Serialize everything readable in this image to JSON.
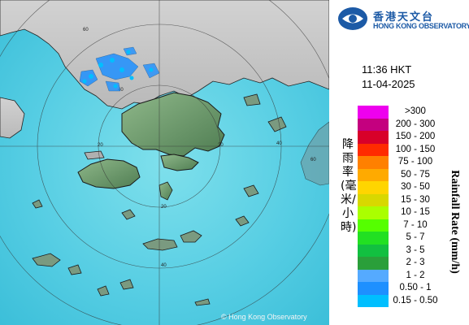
{
  "header": {
    "org_name_zh": "香港天文台",
    "org_name_en": "HONG KONG OBSERVATORY",
    "logo_icon": "hko-logo-icon"
  },
  "timestamp": {
    "time": "11:36 HKT",
    "date": "11-04-2025"
  },
  "legend": {
    "title_zh": "降雨率(毫米/小時)",
    "title_en": "Rainfall Rate (mm/h)",
    "bins": [
      {
        "label": ">300",
        "color": "#ee00ee"
      },
      {
        "label": "200 - 300",
        "color": "#c4007f"
      },
      {
        "label": "150 - 200",
        "color": "#d8002a"
      },
      {
        "label": "100 - 150",
        "color": "#ff2b00"
      },
      {
        "label": "75 - 100",
        "color": "#ff8000"
      },
      {
        "label": "50 - 75",
        "color": "#ffaa00"
      },
      {
        "label": "30 - 50",
        "color": "#ffd500"
      },
      {
        "label": "15 - 30",
        "color": "#d8d800"
      },
      {
        "label": "10 - 15",
        "color": "#aaff00"
      },
      {
        "label": "7 - 10",
        "color": "#55ff00"
      },
      {
        "label": "5 - 7",
        "color": "#22e022"
      },
      {
        "label": "3 - 5",
        "color": "#12c040"
      },
      {
        "label": "2 - 3",
        "color": "#2a9f3a"
      },
      {
        "label": "1 - 2",
        "color": "#55aaff"
      },
      {
        "label": "0.50 - 1",
        "color": "#1e90ff"
      },
      {
        "label": "0.15 - 0.50",
        "color": "#00bfff"
      }
    ]
  },
  "map": {
    "range_ring_labels": [
      "60",
      "40",
      "20",
      "20",
      "40",
      "60",
      "40",
      "20"
    ],
    "copyright": "© Hong Kong Observatory"
  }
}
